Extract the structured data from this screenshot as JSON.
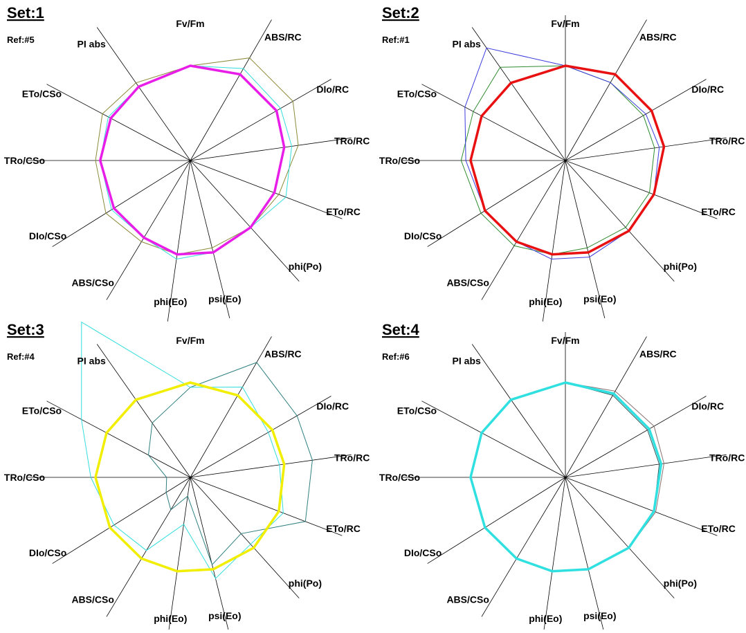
{
  "chart_data": [
    {
      "type": "radar",
      "set_label": "Set:1",
      "ref_label": "Ref:#5",
      "axes": [
        "Fv/Fm",
        "ABS/RC",
        "DIo/RC",
        "TRo/RC",
        "ETo/RC",
        "phi(Po)",
        "psi(Eo)",
        "phi(Eo)",
        "ABS/CSo",
        "DIo/CSo",
        "TRo/CSo",
        "ETo/CSo",
        "PI abs"
      ],
      "rmax": 1.8,
      "vertical_axis": false,
      "series": [
        {
          "color": "#8b8b3a",
          "width": 1,
          "values": [
            1.0,
            1.25,
            1.25,
            1.15,
            1.0,
            0.95,
            0.95,
            1.0,
            1.0,
            1.05,
            1.0,
            1.05,
            1.0
          ]
        },
        {
          "color": "#33dddd",
          "width": 1,
          "values": [
            1.0,
            1.12,
            1.1,
            1.08,
            1.08,
            0.95,
            1.0,
            1.05,
            0.95,
            0.98,
            0.95,
            0.98,
            0.95
          ]
        },
        {
          "color": "#e81ee8",
          "width": 3.5,
          "values": [
            1.0,
            1.05,
            1.05,
            1.0,
            0.95,
            0.95,
            1.0,
            1.0,
            0.95,
            0.95,
            0.95,
            0.95,
            0.95
          ]
        }
      ]
    },
    {
      "type": "radar",
      "set_label": "Set:2",
      "ref_label": "Ref:#1",
      "axes": [
        "Fv/Fm",
        "ABS/RC",
        "DIo/RC",
        "TRo/RC",
        "ETo/RC",
        "phi(Po)",
        "psi(Eo)",
        "phi(Eo)",
        "ABS/CSo",
        "DIo/CSo",
        "TRo/CSo",
        "ETo/CSo",
        "PI abs"
      ],
      "rmax": 1.8,
      "vertical_axis": true,
      "series": [
        {
          "color": "#2e8b2e",
          "width": 1,
          "values": [
            1.0,
            0.95,
            0.95,
            0.95,
            0.95,
            0.95,
            0.95,
            1.0,
            1.05,
            1.05,
            1.1,
            1.1,
            1.2
          ]
        },
        {
          "color": "#3b3bdd",
          "width": 1,
          "values": [
            1.0,
            0.95,
            0.98,
            1.0,
            1.0,
            1.0,
            1.05,
            1.05,
            1.0,
            1.0,
            1.05,
            1.2,
            1.45
          ]
        },
        {
          "color": "#e81010",
          "width": 3.5,
          "values": [
            1.0,
            1.05,
            1.05,
            1.05,
            1.0,
            1.0,
            1.0,
            1.0,
            1.0,
            1.0,
            1.0,
            1.0,
            1.0
          ]
        }
      ]
    },
    {
      "type": "radar",
      "set_label": "Set:3",
      "ref_label": "Ref:#4",
      "axes": [
        "Fv/Fm",
        "ABS/RC",
        "DIo/RC",
        "TRo/RC",
        "ETo/RC",
        "phi(Po)",
        "psi(Eo)",
        "phi(Eo)",
        "ABS/CSo",
        "DIo/CSo",
        "TRo/CSo",
        "ETo/CSo",
        "PI abs"
      ],
      "rmax": 1.8,
      "vertical_axis": false,
      "series": [
        {
          "color": "#2f7f7f",
          "width": 1,
          "values": [
            0.95,
            1.4,
            1.3,
            1.3,
            1.3,
            0.8,
            0.95,
            0.2,
            0.4,
            0.3,
            0.25,
            0.5,
            0.7
          ]
        },
        {
          "color": "#33dddd",
          "width": 1,
          "values": [
            0.95,
            1.1,
            0.95,
            0.95,
            1.05,
            0.95,
            1.1,
            0.5,
            0.9,
            0.95,
            1.05,
            1.3,
            2.0
          ]
        },
        {
          "color": "#f2ee00",
          "width": 3.5,
          "values": [
            1.0,
            1.0,
            1.0,
            1.0,
            1.0,
            1.0,
            1.0,
            1.0,
            1.0,
            1.0,
            1.0,
            1.0,
            1.0
          ]
        }
      ]
    },
    {
      "type": "radar",
      "set_label": "Set:4",
      "ref_label": "Ref:#6",
      "axes": [
        "Fv/Fm",
        "ABS/RC",
        "DIo/RC",
        "TRo/RC",
        "ETo/RC",
        "phi(Po)",
        "psi(Eo)",
        "phi(Eo)",
        "ABS/CSo",
        "DIo/CSo",
        "TRo/CSo",
        "ETo/CSo",
        "PI abs"
      ],
      "rmax": 1.8,
      "vertical_axis": true,
      "series": [
        {
          "color": "#8a7070",
          "width": 1,
          "values": [
            1.0,
            1.05,
            1.08,
            1.05,
            1.02,
            1.0,
            1.0,
            1.0,
            1.0,
            1.0,
            1.0,
            1.0,
            1.0
          ]
        },
        {
          "color": "#2a5a5a",
          "width": 1,
          "values": [
            1.0,
            1.0,
            1.0,
            1.0,
            1.0,
            1.0,
            1.0,
            1.0,
            1.0,
            1.0,
            1.0,
            1.0,
            1.0
          ]
        },
        {
          "color": "#30e0e0",
          "width": 3.5,
          "values": [
            1.0,
            1.02,
            1.02,
            1.02,
            1.0,
            1.0,
            1.0,
            1.0,
            1.0,
            1.0,
            1.0,
            1.0,
            1.0
          ]
        }
      ]
    }
  ]
}
